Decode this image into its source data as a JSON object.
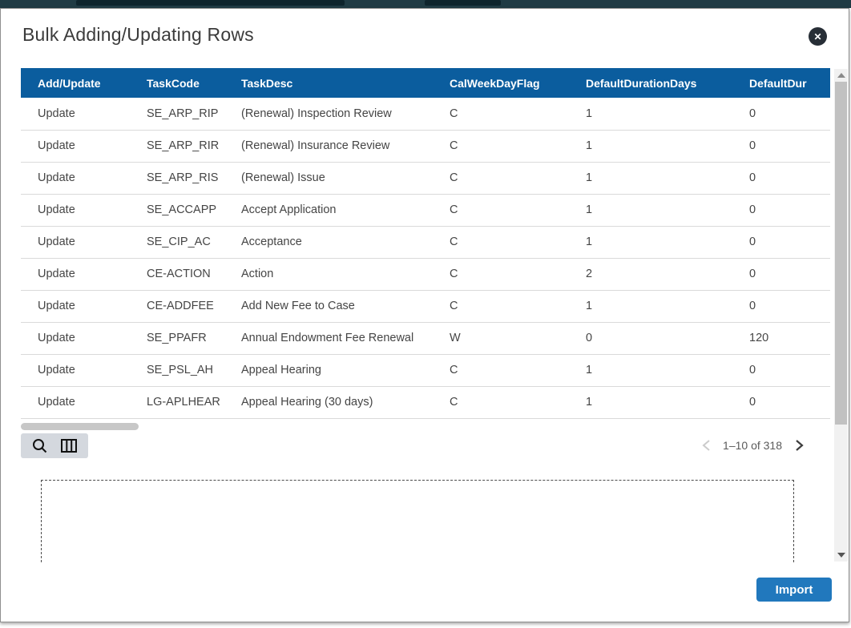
{
  "modal": {
    "title": "Bulk Adding/Updating Rows",
    "close_glyph": "✕"
  },
  "table": {
    "columns": [
      "Add/Update",
      "TaskCode",
      "TaskDesc",
      "CalWeekDayFlag",
      "DefaultDurationDays",
      "DefaultDur"
    ],
    "rows": [
      [
        "Update",
        "SE_ARP_RIP",
        "(Renewal) Inspection Review",
        "C",
        "1",
        "0"
      ],
      [
        "Update",
        "SE_ARP_RIR",
        "(Renewal) Insurance Review",
        "C",
        "1",
        "0"
      ],
      [
        "Update",
        "SE_ARP_RIS",
        "(Renewal) Issue",
        "C",
        "1",
        "0"
      ],
      [
        "Update",
        "SE_ACCAPP",
        "Accept Application",
        "C",
        "1",
        "0"
      ],
      [
        "Update",
        "SE_CIP_AC",
        "Acceptance",
        "C",
        "1",
        "0"
      ],
      [
        "Update",
        "CE-ACTION",
        "Action",
        "C",
        "2",
        "0"
      ],
      [
        "Update",
        "CE-ADDFEE",
        "Add New Fee to Case",
        "C",
        "1",
        "0"
      ],
      [
        "Update",
        "SE_PPAFR",
        "Annual Endowment Fee Renewal",
        "W",
        "0",
        "120"
      ],
      [
        "Update",
        "SE_PSL_AH",
        "Appeal Hearing",
        "C",
        "1",
        "0"
      ],
      [
        "Update",
        "LG-APLHEAR",
        "Appeal Hearing (30 days)",
        "C",
        "1",
        "0"
      ]
    ]
  },
  "toolbar": {
    "icons": [
      "search-icon",
      "column-chooser-icon"
    ]
  },
  "pagination": {
    "label": "1–10 of 318",
    "prev_enabled": false,
    "next_enabled": true
  },
  "footer": {
    "import_label": "Import"
  },
  "colors": {
    "header_bg": "#0b5d9e",
    "import_button": "#2178bd",
    "top_bar": "#203b44",
    "close_button": "#272e36"
  }
}
